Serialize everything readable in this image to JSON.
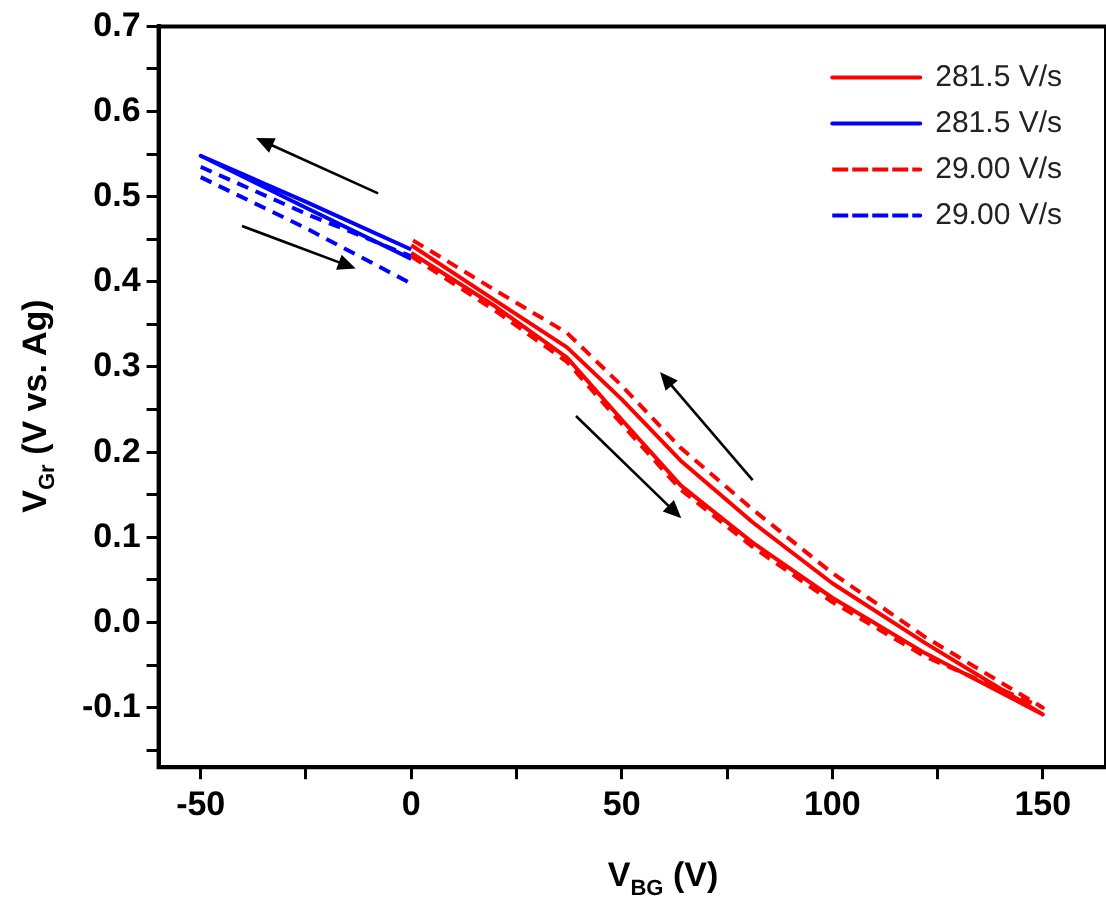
{
  "chart_data": {
    "type": "line",
    "xlabel": "V$_{BG}$ (V)",
    "ylabel": "V$_{Gr}$ (V vs. Ag)",
    "xlim": [
      -60,
      165
    ],
    "ylim": [
      -0.17,
      0.7
    ],
    "xticks": [
      -50,
      {
        "value": -25,
        "label": null
      },
      0,
      {
        "value": 25,
        "label": null
      },
      50,
      {
        "value": 75,
        "label": null
      },
      100,
      {
        "value": 125,
        "label": null
      },
      150
    ],
    "yticks": [
      {
        "value": -0.15,
        "label": null
      },
      -0.1,
      {
        "value": -0.05,
        "label": null
      },
      {
        "value": 0,
        "label": "0.0"
      },
      {
        "value": 0.05,
        "label": null
      },
      0.1,
      {
        "value": 0.15,
        "label": null
      },
      0.2,
      {
        "value": 0.25,
        "label": null
      },
      0.3,
      {
        "value": 0.35,
        "label": null
      },
      0.4,
      {
        "value": 0.45,
        "label": null
      },
      0.5,
      {
        "value": 0.55,
        "label": null
      },
      0.6,
      {
        "value": 0.65,
        "label": null
      },
      0.7
    ],
    "grid": false,
    "legend": "top right",
    "marker": "none",
    "series": [
      {
        "name": "281.5 V/s",
        "color": "#ff0000",
        "line_style": "solid",
        "x": [
          0,
          20,
          37,
          50,
          64,
          81,
          100,
          122,
          150,
          122,
          100,
          81,
          64,
          50,
          37,
          20,
          0
        ],
        "values": [
          0.434,
          0.371,
          0.311,
          0.238,
          0.161,
          0.094,
          0.029,
          -0.036,
          -0.108,
          -0.024,
          0.046,
          0.118,
          0.19,
          0.262,
          0.323,
          0.378,
          0.443
        ]
      },
      {
        "name": "281.5 V/s",
        "color": "#0000ff",
        "line_style": "solid",
        "x": [
          0,
          -25,
          -50,
          -25,
          0
        ],
        "values": [
          0.427,
          0.487,
          0.548,
          0.494,
          0.438
        ]
      },
      {
        "name": "29.00 V/s",
        "color": "#ff0000",
        "line_style": "dashed",
        "x": [
          0,
          20,
          37,
          50,
          64,
          81,
          100,
          122,
          150,
          122,
          100,
          81,
          64,
          50,
          37,
          20,
          0
        ],
        "values": [
          0.43,
          0.366,
          0.306,
          0.233,
          0.156,
          0.089,
          0.024,
          -0.04,
          -0.1,
          -0.017,
          0.058,
          0.133,
          0.205,
          0.278,
          0.34,
          0.39,
          0.45
        ]
      },
      {
        "name": "29.00 V/s",
        "color": "#0000ff",
        "line_style": "dashed",
        "x": [
          -50,
          -25,
          0
        ],
        "values": [
          0.523,
          0.463,
          0.398
        ]
      },
      {
        "color": "#0000ff",
        "line_style": "dashed",
        "x": [
          -50,
          -25,
          0
        ],
        "values": [
          0.535,
          0.48,
          0.43
        ]
      }
    ]
  }
}
